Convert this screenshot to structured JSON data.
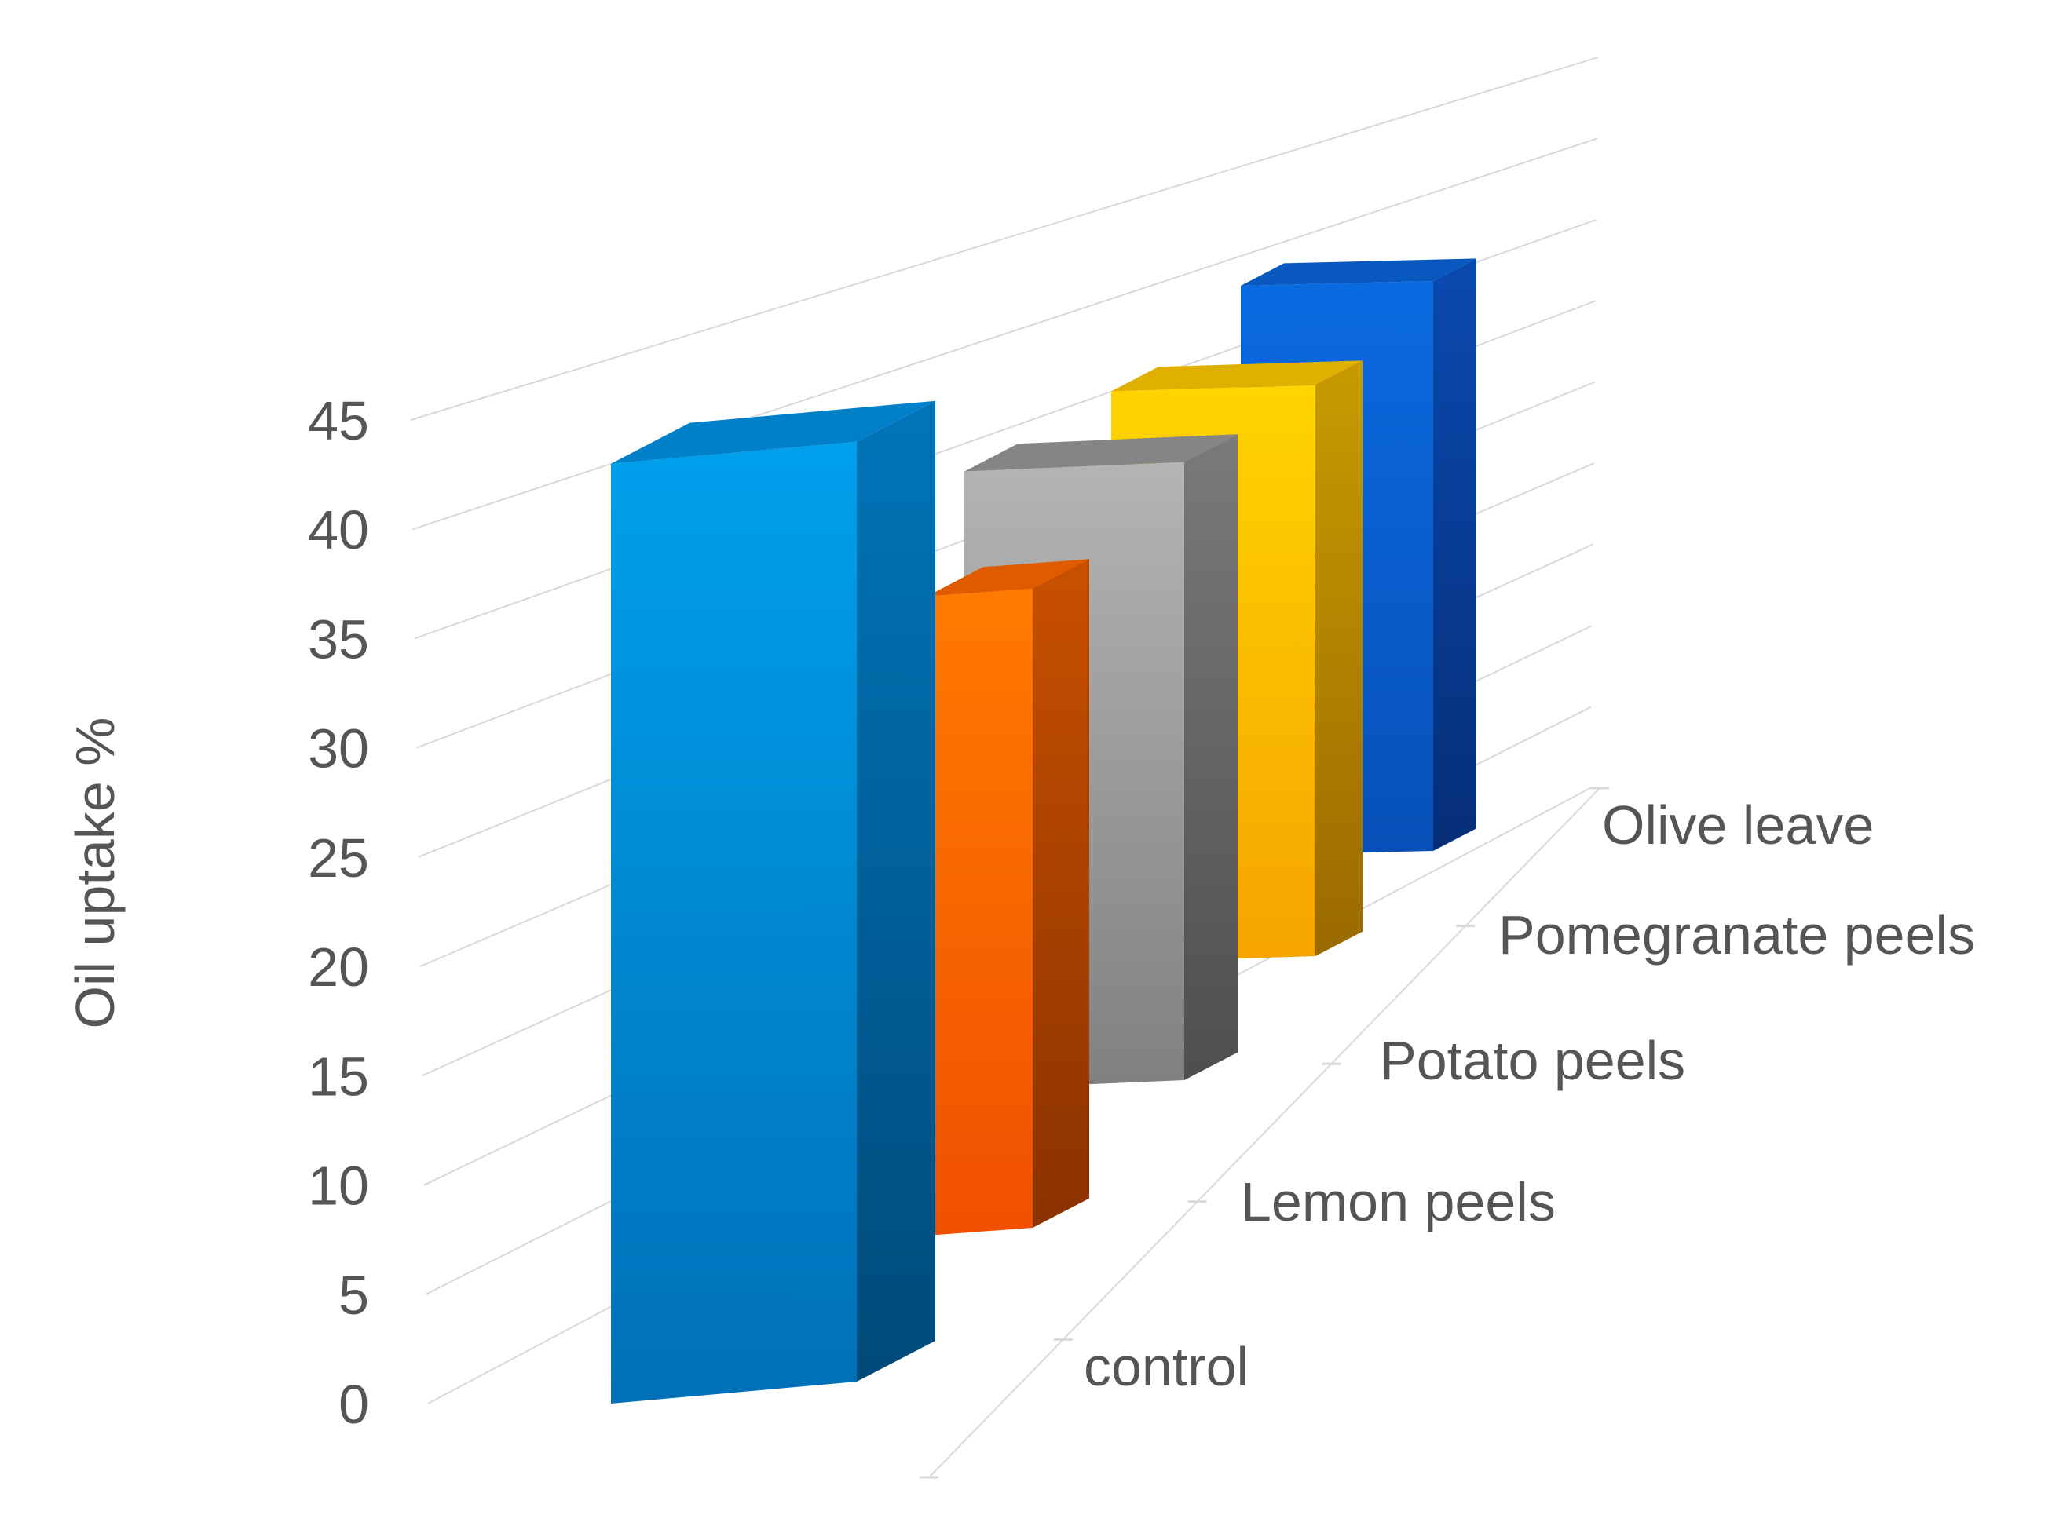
{
  "chart_data": {
    "type": "bar",
    "variant": "3d-column",
    "title": "",
    "xlabel": "",
    "ylabel": "Oil uptake %",
    "ylim": [
      0,
      45
    ],
    "yticks": [
      0,
      5,
      10,
      15,
      20,
      25,
      30,
      35,
      40,
      45
    ],
    "grid": true,
    "categories": [
      "control",
      "Lemon peels",
      "Potato peels",
      "Pomegranate peels",
      "Olive leave"
    ],
    "values": [
      43,
      31,
      31,
      31,
      33
    ],
    "colors": [
      "#0090d8",
      "#ff6a00",
      "#9a9a9a",
      "#ffb700",
      "#0a5fd0"
    ]
  }
}
